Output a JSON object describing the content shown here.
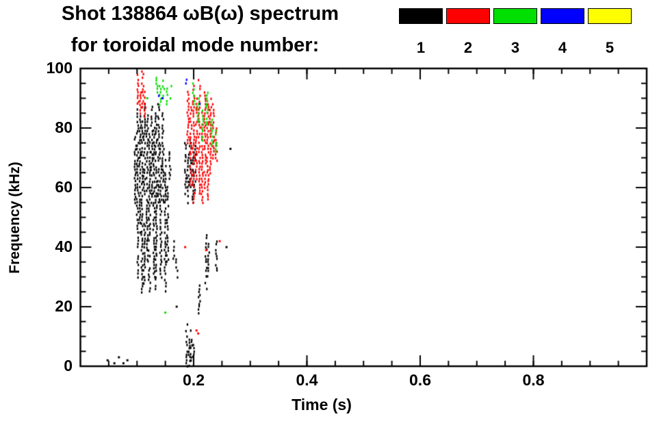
{
  "title": {
    "line1": "Shot 138864 ωB(ω) spectrum",
    "line2": "for toroidal mode number:"
  },
  "legend": {
    "modes": [
      {
        "label": "1",
        "color": "#000000"
      },
      {
        "label": "2",
        "color": "#ff0000"
      },
      {
        "label": "3",
        "color": "#00e000"
      },
      {
        "label": "4",
        "color": "#0000ff"
      },
      {
        "label": "5",
        "color": "#ffff00"
      }
    ]
  },
  "chart_data": {
    "type": "scatter",
    "title": "Shot 138864 ωB(ω) spectrum for toroidal mode number: 1-5",
    "xlabel": "Time (s)",
    "ylabel": "Frequency (kHz)",
    "xlim": [
      0.0,
      1.0
    ],
    "ylim": [
      0,
      100
    ],
    "x_major_ticks": [
      0.2,
      0.4,
      0.6,
      0.8
    ],
    "x_tick_labels": [
      "0.2",
      "0.4",
      "0.6",
      "0.8"
    ],
    "x_minor_step": 0.05,
    "y_major_ticks": [
      0,
      20,
      40,
      60,
      80,
      100
    ],
    "y_tick_labels": [
      "0",
      "20",
      "40",
      "60",
      "80",
      "100"
    ],
    "y_minor_step": 5,
    "grid": false,
    "legend_position": "top-right",
    "segment_format": "[time_s, freq_min_kHz, freq_max_kHz]",
    "point_format": "[time_s, freq_kHz]",
    "series": [
      {
        "name": "n=1",
        "color": "#000000",
        "segments": [
          [
            0.097,
            55,
            78
          ],
          [
            0.101,
            30,
            86
          ],
          [
            0.105,
            45,
            84
          ],
          [
            0.109,
            25,
            82
          ],
          [
            0.113,
            58,
            88
          ],
          [
            0.113,
            28,
            48
          ],
          [
            0.118,
            35,
            84
          ],
          [
            0.122,
            25,
            78
          ],
          [
            0.126,
            55,
            87
          ],
          [
            0.13,
            30,
            80
          ],
          [
            0.134,
            25,
            86
          ],
          [
            0.138,
            55,
            88
          ],
          [
            0.142,
            30,
            76
          ],
          [
            0.146,
            55,
            85
          ],
          [
            0.15,
            25,
            70
          ],
          [
            0.154,
            35,
            60
          ],
          [
            0.158,
            62,
            72
          ],
          [
            0.165,
            36,
            42
          ],
          [
            0.17,
            30,
            36
          ],
          [
            0.186,
            58,
            75
          ],
          [
            0.19,
            55,
            72
          ],
          [
            0.194,
            60,
            76
          ],
          [
            0.198,
            55,
            70
          ],
          [
            0.202,
            58,
            74
          ],
          [
            0.188,
            0,
            14
          ],
          [
            0.192,
            0,
            10
          ],
          [
            0.196,
            2,
            12
          ],
          [
            0.2,
            0,
            8
          ],
          [
            0.21,
            18,
            28
          ],
          [
            0.222,
            26,
            44
          ],
          [
            0.226,
            30,
            42
          ],
          [
            0.24,
            32,
            42
          ]
        ],
        "points": [
          [
            0.048,
            2
          ],
          [
            0.06,
            1
          ],
          [
            0.068,
            3
          ],
          [
            0.076,
            1
          ],
          [
            0.083,
            2
          ],
          [
            0.17,
            20
          ],
          [
            0.258,
            40
          ],
          [
            0.265,
            73
          ]
        ]
      },
      {
        "name": "n=2",
        "color": "#ff0000",
        "segments": [
          [
            0.102,
            88,
            98
          ],
          [
            0.106,
            85,
            95
          ],
          [
            0.11,
            87,
            99
          ],
          [
            0.114,
            84,
            92
          ],
          [
            0.19,
            75,
            92
          ],
          [
            0.195,
            60,
            88
          ],
          [
            0.2,
            55,
            95
          ],
          [
            0.205,
            62,
            90
          ],
          [
            0.21,
            58,
            96
          ],
          [
            0.215,
            55,
            85
          ],
          [
            0.22,
            60,
            92
          ],
          [
            0.225,
            56,
            88
          ],
          [
            0.23,
            65,
            90
          ],
          [
            0.235,
            70,
            88
          ],
          [
            0.24,
            68,
            80
          ]
        ],
        "points": [
          [
            0.205,
            12
          ],
          [
            0.208,
            11
          ],
          [
            0.222,
            39
          ],
          [
            0.246,
            42
          ],
          [
            0.185,
            40
          ]
        ]
      },
      {
        "name": "n=3",
        "color": "#00e000",
        "segments": [
          [
            0.135,
            92,
            97
          ],
          [
            0.141,
            88,
            94
          ],
          [
            0.147,
            91,
            96
          ],
          [
            0.153,
            87,
            93
          ],
          [
            0.16,
            90,
            95
          ],
          [
            0.2,
            88,
            95
          ],
          [
            0.208,
            82,
            90
          ],
          [
            0.216,
            76,
            86
          ],
          [
            0.224,
            80,
            92
          ],
          [
            0.232,
            74,
            84
          ],
          [
            0.24,
            72,
            79
          ]
        ],
        "points": [
          [
            0.15,
            18
          ],
          [
            0.118,
            90
          ]
        ]
      },
      {
        "name": "n=4",
        "color": "#0000ff",
        "segments": [
          [
            0.138,
            91,
            93
          ],
          [
            0.186,
            94,
            96
          ],
          [
            0.212,
            87,
            89
          ]
        ],
        "points": [
          [
            0.145,
            90
          ]
        ]
      },
      {
        "name": "n=5",
        "color": "#ffff00",
        "segments": [],
        "points": []
      }
    ]
  }
}
